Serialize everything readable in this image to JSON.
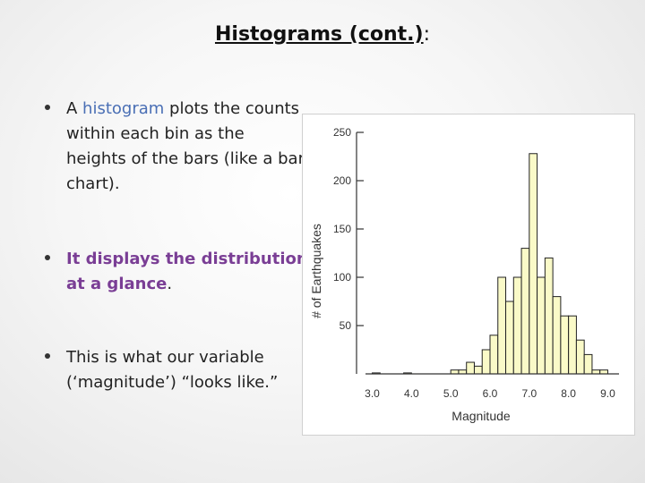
{
  "slide": {
    "title_main": "Histograms (cont.)",
    "title_tail": ":",
    "bullets": {
      "b1_pre": "A ",
      "b1_hl": "histogram",
      "b1_post": " plots the counts within each bin as the heights of the bars (like a bar chart).",
      "b2_hl": "It displays the distribution at a glance",
      "b2_post": ".",
      "b3": "This is what our variable (‘magnitude’) “looks like.”"
    }
  },
  "colors": {
    "bar_fill": "#fafac8",
    "bar_stroke": "#222222",
    "highlight_blue": "#4a6fb5",
    "highlight_purple": "#7a3e95"
  },
  "chart_data": {
    "type": "bar",
    "xlabel": "Magnitude",
    "ylabel": "# of Earthquakes",
    "xlim": [
      2.6,
      9.4
    ],
    "ylim": [
      0,
      250
    ],
    "xticks": [
      "3.0",
      "4.0",
      "5.0",
      "6.0",
      "7.0",
      "8.0",
      "9.0"
    ],
    "yticks": [
      "50",
      "100",
      "150",
      "200",
      "250"
    ],
    "bin_width": 0.2,
    "bins": [
      {
        "x": 3.0,
        "y": 1
      },
      {
        "x": 3.8,
        "y": 1
      },
      {
        "x": 5.0,
        "y": 4
      },
      {
        "x": 5.2,
        "y": 4
      },
      {
        "x": 5.4,
        "y": 12
      },
      {
        "x": 5.6,
        "y": 8
      },
      {
        "x": 5.8,
        "y": 25
      },
      {
        "x": 6.0,
        "y": 40
      },
      {
        "x": 6.2,
        "y": 100
      },
      {
        "x": 6.4,
        "y": 75
      },
      {
        "x": 6.6,
        "y": 100
      },
      {
        "x": 6.8,
        "y": 130
      },
      {
        "x": 7.0,
        "y": 228
      },
      {
        "x": 7.2,
        "y": 100
      },
      {
        "x": 7.4,
        "y": 120
      },
      {
        "x": 7.6,
        "y": 80
      },
      {
        "x": 7.8,
        "y": 60
      },
      {
        "x": 8.0,
        "y": 60
      },
      {
        "x": 8.2,
        "y": 35
      },
      {
        "x": 8.4,
        "y": 20
      },
      {
        "x": 8.6,
        "y": 4
      },
      {
        "x": 8.8,
        "y": 4
      }
    ]
  }
}
